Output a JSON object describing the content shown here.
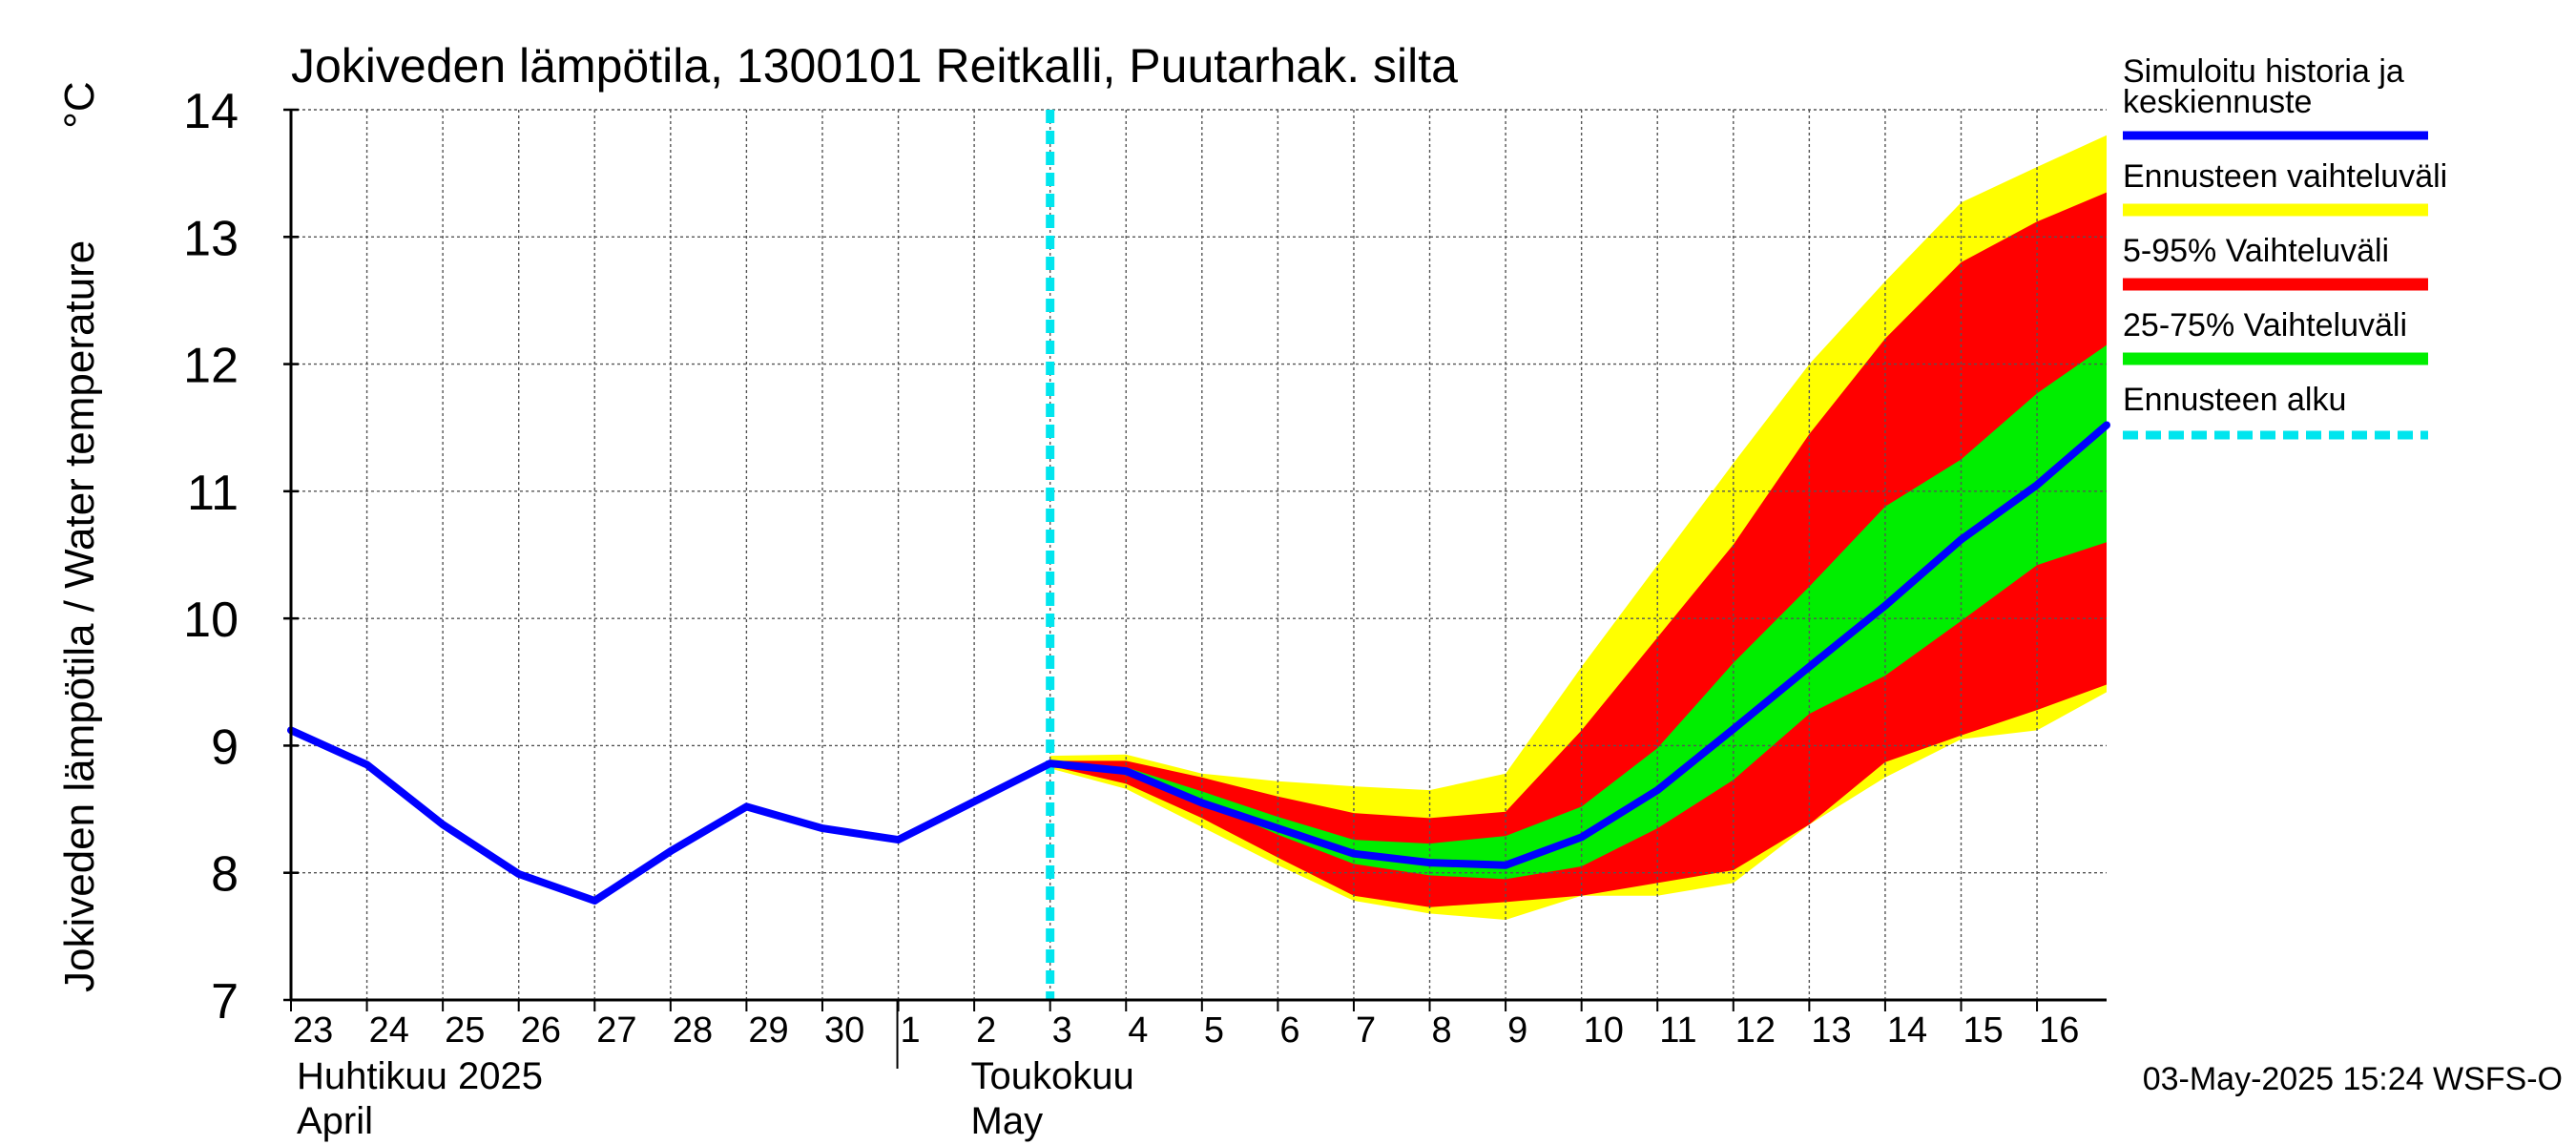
{
  "chart_data": {
    "type": "area",
    "title": "Jokiveden lämpötila, 1300101 Reitkalli, Puutarhak. silta",
    "ylabel": "Jokiveden lämpötila / Water temperature",
    "yunit": "°C",
    "ylim": [
      7,
      14
    ],
    "yticks": [
      7,
      8,
      9,
      10,
      11,
      12,
      13,
      14
    ],
    "xlim": [
      "2025-04-23",
      "2025-05-16T22:00"
    ],
    "xticks": [
      {
        "date": "2025-04-23",
        "label": "23"
      },
      {
        "date": "2025-04-24",
        "label": "24"
      },
      {
        "date": "2025-04-25",
        "label": "25"
      },
      {
        "date": "2025-04-26",
        "label": "26"
      },
      {
        "date": "2025-04-27",
        "label": "27"
      },
      {
        "date": "2025-04-28",
        "label": "28"
      },
      {
        "date": "2025-04-29",
        "label": "29"
      },
      {
        "date": "2025-04-30",
        "label": "30"
      },
      {
        "date": "2025-05-01",
        "label": "1"
      },
      {
        "date": "2025-05-02",
        "label": "2"
      },
      {
        "date": "2025-05-03",
        "label": "3"
      },
      {
        "date": "2025-05-04",
        "label": "4"
      },
      {
        "date": "2025-05-05",
        "label": "5"
      },
      {
        "date": "2025-05-06",
        "label": "6"
      },
      {
        "date": "2025-05-07",
        "label": "7"
      },
      {
        "date": "2025-05-08",
        "label": "8"
      },
      {
        "date": "2025-05-09",
        "label": "9"
      },
      {
        "date": "2025-05-10",
        "label": "10"
      },
      {
        "date": "2025-05-11",
        "label": "11"
      },
      {
        "date": "2025-05-12",
        "label": "12"
      },
      {
        "date": "2025-05-13",
        "label": "13"
      },
      {
        "date": "2025-05-14",
        "label": "14"
      },
      {
        "date": "2025-05-15",
        "label": "15"
      },
      {
        "date": "2025-05-16",
        "label": "16"
      }
    ],
    "month_labels": [
      {
        "date": "2025-04-23",
        "line1": "Huhtikuu  2025",
        "line2": "April"
      },
      {
        "date": "2025-05-01",
        "line1": "Toukokuu",
        "line2": "May"
      }
    ],
    "grid": true,
    "legend_position": "right",
    "forecast_start": "2025-05-03",
    "bands": [
      {
        "name": "Ennusteen vaihteluväli",
        "color": "#ffff00",
        "x": [
          "2025-05-03",
          "2025-05-04",
          "2025-05-05",
          "2025-05-06",
          "2025-05-07",
          "2025-05-08",
          "2025-05-09",
          "2025-05-10",
          "2025-05-11",
          "2025-05-12",
          "2025-05-13",
          "2025-05-14",
          "2025-05-15",
          "2025-05-16",
          "2025-05-16T22:00"
        ],
        "upper": [
          8.92,
          8.93,
          8.78,
          8.72,
          8.68,
          8.65,
          8.78,
          9.62,
          10.42,
          11.22,
          12.0,
          12.65,
          13.27,
          13.55,
          13.8
        ],
        "lower": [
          8.82,
          8.66,
          8.36,
          8.06,
          7.78,
          7.68,
          7.63,
          7.82,
          7.82,
          7.92,
          8.38,
          8.75,
          9.05,
          9.12,
          9.42
        ]
      },
      {
        "name": "5-95% Vaihteluväli",
        "color": "#ff0000",
        "x": [
          "2025-05-03",
          "2025-05-04",
          "2025-05-05",
          "2025-05-06",
          "2025-05-07",
          "2025-05-08",
          "2025-05-09",
          "2025-05-10",
          "2025-05-11",
          "2025-05-12",
          "2025-05-13",
          "2025-05-14",
          "2025-05-15",
          "2025-05-16",
          "2025-05-16T22:00"
        ],
        "upper": [
          8.88,
          8.88,
          8.75,
          8.6,
          8.47,
          8.43,
          8.48,
          9.12,
          9.85,
          10.58,
          11.45,
          12.2,
          12.8,
          13.12,
          13.35
        ],
        "lower": [
          8.84,
          8.7,
          8.43,
          8.12,
          7.82,
          7.73,
          7.77,
          7.82,
          7.92,
          8.02,
          8.38,
          8.87,
          9.08,
          9.28,
          9.48
        ]
      },
      {
        "name": "25-75% Vaihteluväli",
        "color": "#00ee00",
        "x": [
          "2025-05-03",
          "2025-05-04",
          "2025-05-05",
          "2025-05-06",
          "2025-05-07",
          "2025-05-08",
          "2025-05-09",
          "2025-05-10",
          "2025-05-11",
          "2025-05-12",
          "2025-05-13",
          "2025-05-14",
          "2025-05-15",
          "2025-05-16",
          "2025-05-16T22:00"
        ],
        "upper": [
          8.86,
          8.83,
          8.64,
          8.44,
          8.26,
          8.23,
          8.29,
          8.52,
          8.98,
          9.65,
          10.25,
          10.88,
          11.25,
          11.77,
          12.15
        ],
        "lower": [
          8.85,
          8.77,
          8.56,
          8.3,
          8.07,
          7.98,
          7.95,
          8.05,
          8.35,
          8.73,
          9.25,
          9.55,
          9.98,
          10.42,
          10.6
        ]
      }
    ],
    "series": [
      {
        "name": "Simuloitu historia ja keskiennuste",
        "color": "#0000ff",
        "x": [
          "2025-04-23",
          "2025-04-24",
          "2025-04-25",
          "2025-04-26",
          "2025-04-27",
          "2025-04-28",
          "2025-04-29",
          "2025-04-30",
          "2025-05-01",
          "2025-05-02",
          "2025-05-03",
          "2025-05-04",
          "2025-05-05",
          "2025-05-06",
          "2025-05-07",
          "2025-05-08",
          "2025-05-09",
          "2025-05-10",
          "2025-05-11",
          "2025-05-12",
          "2025-05-13",
          "2025-05-14",
          "2025-05-15",
          "2025-05-16",
          "2025-05-16T22:00"
        ],
        "y": [
          9.12,
          8.85,
          8.38,
          7.99,
          7.78,
          8.17,
          8.52,
          8.35,
          8.26,
          8.56,
          8.86,
          8.8,
          8.55,
          8.35,
          8.15,
          8.08,
          8.06,
          8.28,
          8.65,
          9.13,
          9.62,
          10.1,
          10.62,
          11.05,
          11.52
        ]
      }
    ],
    "legend": [
      {
        "label": "Simuloitu historia ja keskiennuste",
        "color": "#0000ff",
        "style": "line"
      },
      {
        "label": "Ennusteen vaihteluväli",
        "color": "#ffff00",
        "style": "band"
      },
      {
        "label": "5-95% Vaihteluväli",
        "color": "#ff0000",
        "style": "band"
      },
      {
        "label": "25-75% Vaihteluväli",
        "color": "#00ee00",
        "style": "band"
      },
      {
        "label": "Ennusteen alku",
        "color": "#00e5ee",
        "style": "dashed"
      }
    ],
    "footer": "03-May-2025 15:24 WSFS-O"
  }
}
